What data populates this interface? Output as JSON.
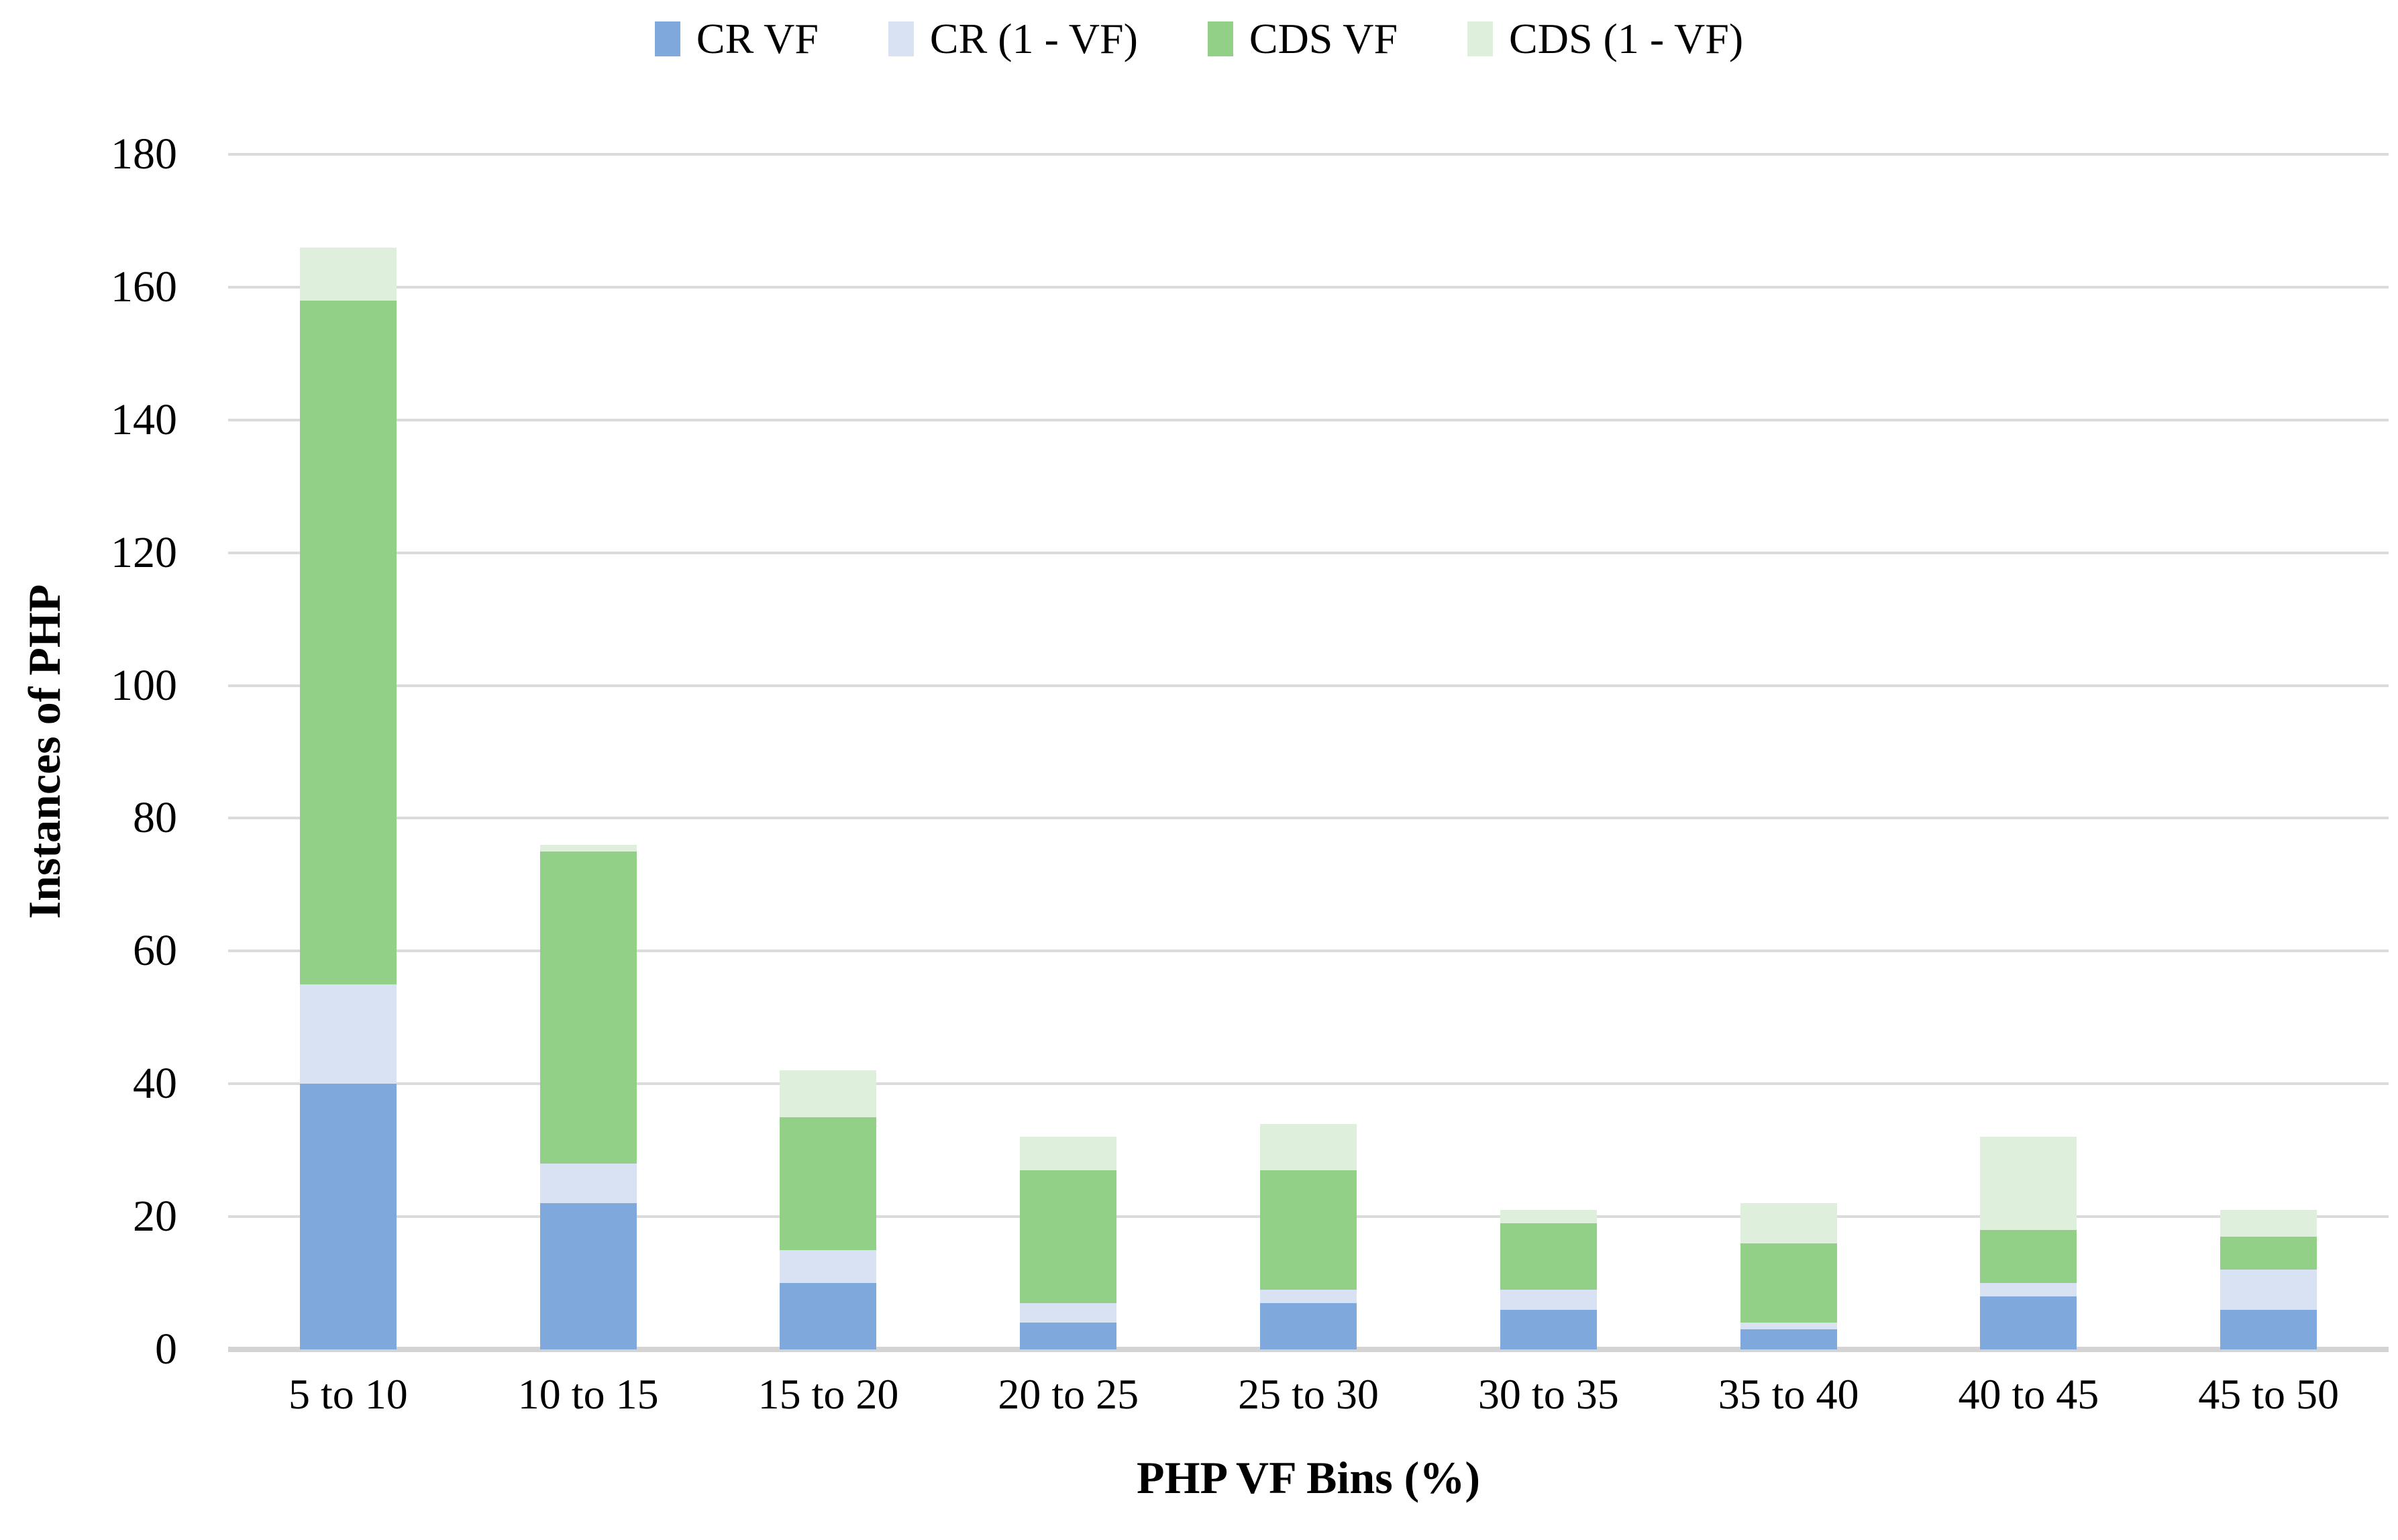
{
  "chart_data": {
    "type": "bar",
    "stacked": true,
    "title": "",
    "xlabel": "PHP VF Bins (%)",
    "ylabel": "Instances of PHP",
    "categories": [
      "5 to 10",
      "10 to 15",
      "15 to 20",
      "20 to 25",
      "25 to 30",
      "30 to 35",
      "35 to 40",
      "40 to 45",
      "45 to 50"
    ],
    "series": [
      {
        "name": "CR VF",
        "color": "#7fa9dd",
        "values": [
          40,
          22,
          10,
          4,
          7,
          6,
          3,
          8,
          6
        ]
      },
      {
        "name": "CR (1 - VF)",
        "color": "#d8e2f3",
        "values": [
          15,
          6,
          5,
          3,
          2,
          3,
          1,
          2,
          6
        ]
      },
      {
        "name": "CDS VF",
        "color": "#93d087",
        "values": [
          103,
          47,
          20,
          20,
          18,
          10,
          12,
          8,
          5
        ]
      },
      {
        "name": "CDS (1 - VF)",
        "color": "#deefdc",
        "values": [
          8,
          1,
          7,
          5,
          7,
          2,
          6,
          14,
          4
        ]
      }
    ],
    "ylim": [
      0,
      180
    ],
    "yticks": [
      0,
      20,
      40,
      60,
      80,
      100,
      120,
      140,
      160,
      180
    ],
    "grid": "horizontal",
    "legend_position": "top"
  },
  "style_colors": {
    "gridline": "#dbdbdb",
    "axis_line": "#d4d4d4",
    "text": "#000000",
    "background": "#ffffff"
  }
}
